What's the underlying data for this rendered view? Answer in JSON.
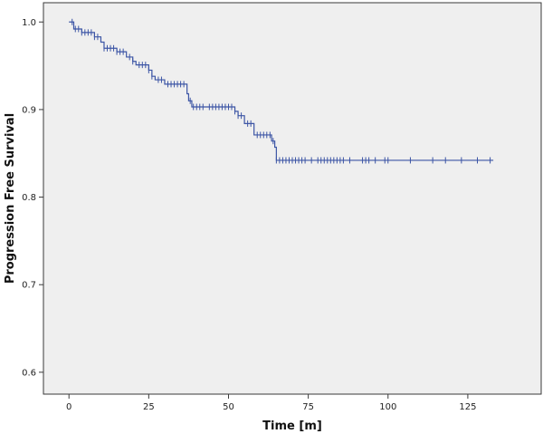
{
  "chart_data": {
    "type": "line",
    "title": "",
    "xlabel": "Time [m]",
    "ylabel": "Progression Free Survival",
    "xlim": [
      -8,
      148
    ],
    "ylim": [
      0.575,
      1.022
    ],
    "xticks": [
      0,
      25,
      50,
      75,
      100,
      125
    ],
    "yticks": [
      0.6,
      0.7,
      0.8,
      0.9,
      1.0
    ],
    "ytick_labels": [
      "0.6",
      "0.7",
      "0.8",
      "0.9",
      "1.0"
    ],
    "grid": false,
    "legend": "none",
    "series": [
      {
        "name": "",
        "step": [
          [
            0,
            1.0
          ],
          [
            1.5,
            0.992
          ],
          [
            4,
            0.988
          ],
          [
            8,
            0.983
          ],
          [
            10,
            0.977
          ],
          [
            11,
            0.97
          ],
          [
            15,
            0.966
          ],
          [
            18,
            0.96
          ],
          [
            20,
            0.955
          ],
          [
            21,
            0.951
          ],
          [
            25,
            0.945
          ],
          [
            26,
            0.938
          ],
          [
            27,
            0.934
          ],
          [
            30,
            0.929
          ],
          [
            37,
            0.918
          ],
          [
            37.5,
            0.91
          ],
          [
            38.5,
            0.903
          ],
          [
            52,
            0.898
          ],
          [
            53,
            0.893
          ],
          [
            55,
            0.884
          ],
          [
            58,
            0.871
          ],
          [
            63.5,
            0.864
          ],
          [
            64.5,
            0.857
          ],
          [
            65,
            0.842
          ],
          [
            133,
            0.842
          ]
        ],
        "censored_x": [
          1,
          2,
          3,
          4,
          5,
          6,
          7,
          8,
          9,
          11,
          12,
          13,
          14,
          15,
          16,
          17,
          19,
          20,
          22,
          23,
          24,
          25,
          26,
          28,
          29,
          31,
          32,
          33,
          34,
          35,
          36,
          38,
          39,
          40,
          41,
          42,
          44,
          45,
          46,
          47,
          48,
          49,
          50,
          51,
          52,
          53,
          54,
          56,
          57,
          59,
          60,
          61,
          62,
          63,
          64,
          65,
          66,
          67,
          68,
          69,
          70,
          71,
          72,
          73,
          74,
          76,
          78,
          79,
          80,
          81,
          82,
          83,
          84,
          85,
          86,
          88,
          92,
          93,
          94,
          96,
          99,
          100,
          107,
          114,
          118,
          123,
          128,
          132
        ]
      }
    ],
    "colors": {
      "series": "#3c55a5",
      "plot_background": "#efefef",
      "axis": "#3a3a3a"
    }
  }
}
